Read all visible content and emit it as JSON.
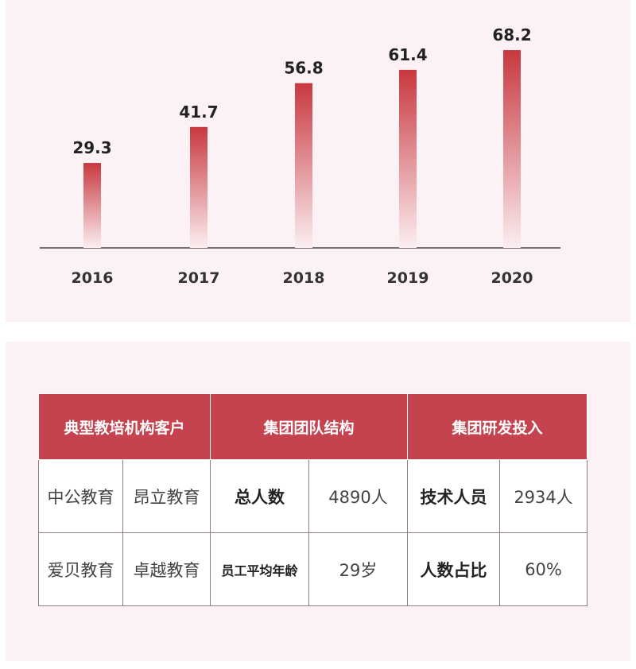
{
  "chart_data": {
    "type": "bar",
    "categories": [
      "2016",
      "2017",
      "2018",
      "2019",
      "2020"
    ],
    "values": [
      29.3,
      41.7,
      56.8,
      61.4,
      68.2
    ],
    "value_labels": [
      "29.3",
      "41.7",
      "56.8",
      "61.4",
      "68.2"
    ],
    "ylim": [
      0,
      80
    ],
    "grid": false,
    "bar_color": "#c8383f"
  },
  "table": {
    "headers": [
      "典型教培机构客户",
      "集团团队结构",
      "集团研发投入"
    ],
    "rows": [
      [
        "中公教育",
        "昂立教育",
        "总人数",
        "4890人",
        "技术人员",
        "2934人"
      ],
      [
        "爱贝教育",
        "卓越教育",
        "员工平均年龄",
        "29岁",
        "人数占比",
        "60%"
      ]
    ]
  },
  "colors": {
    "panel_bg": "#fcf1f4",
    "header_bg": "#c5424f",
    "bar": "#c8383f"
  }
}
